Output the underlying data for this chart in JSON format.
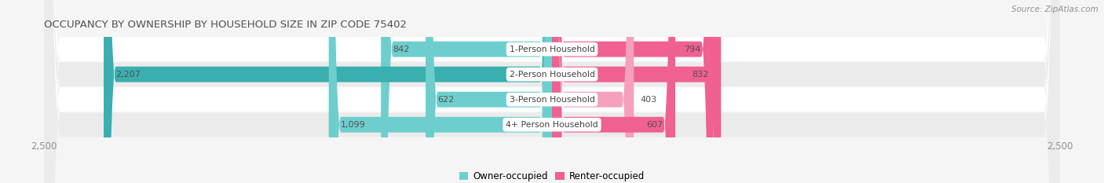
{
  "title": "OCCUPANCY BY OWNERSHIP BY HOUSEHOLD SIZE IN ZIP CODE 75402",
  "source": "Source: ZipAtlas.com",
  "categories": [
    "1-Person Household",
    "2-Person Household",
    "3-Person Household",
    "4+ Person Household"
  ],
  "owner_values": [
    842,
    2207,
    622,
    1099
  ],
  "renter_values": [
    794,
    832,
    403,
    607
  ],
  "owner_color_light": "#6ecece",
  "owner_color_dark": "#3aafaf",
  "renter_color_light": "#f5a0bc",
  "renter_color_dark": "#f06090",
  "max_value": 2500,
  "bg_color": "#f5f5f5",
  "row_colors": [
    "#ffffff",
    "#ebebeb"
  ],
  "title_color": "#505050",
  "tick_color": "#909090",
  "legend_owner": "Owner-occupied",
  "legend_renter": "Renter-occupied"
}
